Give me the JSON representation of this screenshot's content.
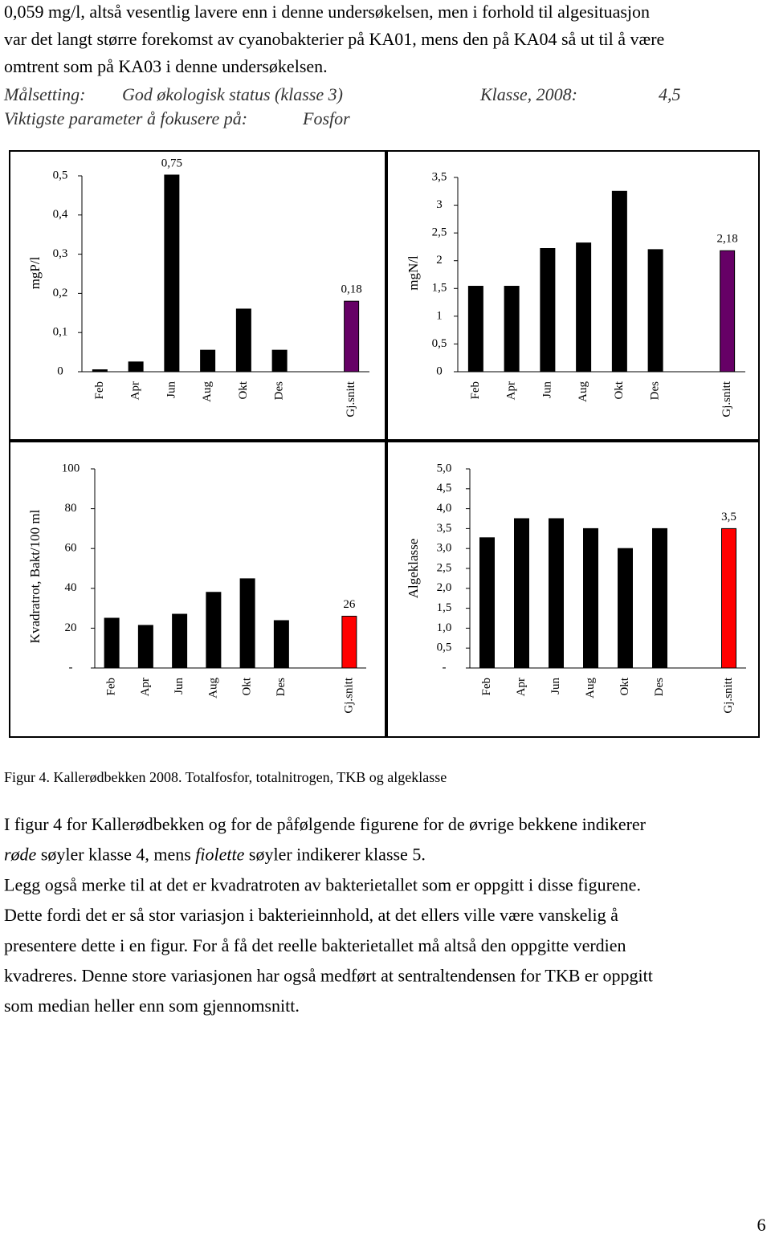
{
  "intro_lines": [
    "0,059 mg/l, altså vesentlig lavere enn i denne undersøkelsen, men i forhold til algesituasjon",
    "var det langt større forekomst av cyanobakterier på KA01, mens den på KA04 så ut til å være",
    "omtrent som på KA03 i denne undersøkelsen."
  ],
  "goal": {
    "label": "Målsetting:",
    "text": "God økologisk status (klasse 3)",
    "class_label": "Klasse, 2008:",
    "class_value": "4,5",
    "focus_label": "Viktigste parameter å fokusere på:",
    "focus_value": "Fosfor"
  },
  "chart_data": [
    {
      "type": "bar",
      "y_label": "mgP/l",
      "categories": [
        "Feb",
        "Apr",
        "Jun",
        "Aug",
        "Okt",
        "Des",
        null,
        "Gj.snitt"
      ],
      "values": [
        0.005,
        0.025,
        0.75,
        0.055,
        0.16,
        0.055,
        null,
        0.18
      ],
      "value_labels": [
        null,
        null,
        "0,75",
        null,
        null,
        null,
        null,
        "0,18"
      ],
      "colors": [
        "#000000",
        "#000000",
        "#000000",
        "#000000",
        "#000000",
        "#000000",
        null,
        "#660066"
      ],
      "ylim": [
        0,
        0.5
      ],
      "yticks": [
        0,
        {
          "value": 0.1,
          "label": "0,1"
        },
        {
          "value": 0.2,
          "label": "0,2"
        },
        {
          "value": 0.3,
          "label": "0,3"
        },
        {
          "value": 0.4,
          "label": "0,4"
        },
        {
          "value": 0.5,
          "label": "0,5"
        }
      ]
    },
    {
      "type": "bar",
      "y_label": "mgN/l",
      "categories": [
        "Feb",
        "Apr",
        "Jun",
        "Aug",
        "Okt",
        "Des",
        null,
        "Gj.snitt"
      ],
      "values": [
        1.54,
        1.54,
        2.22,
        2.32,
        3.25,
        2.2,
        null,
        2.18
      ],
      "value_labels": [
        null,
        null,
        null,
        null,
        null,
        null,
        null,
        "2,18"
      ],
      "colors": [
        "#000000",
        "#000000",
        "#000000",
        "#000000",
        "#000000",
        "#000000",
        null,
        "#660066"
      ],
      "ylim": [
        0,
        3.5
      ],
      "yticks": [
        0,
        {
          "value": 0.5,
          "label": "0,5"
        },
        1,
        {
          "value": 1.5,
          "label": "1,5"
        },
        2,
        {
          "value": 2.5,
          "label": "2,5"
        },
        3,
        {
          "value": 3.5,
          "label": "3,5"
        }
      ]
    },
    {
      "type": "bar",
      "y_label": "Kvadratrot, Bakt/100 ml",
      "categories": [
        "Feb",
        "Apr",
        "Jun",
        "Aug",
        "Okt",
        "Des",
        null,
        "Gj.snitt"
      ],
      "values": [
        25,
        21.4,
        27,
        38,
        44.8,
        23.8,
        null,
        26
      ],
      "value_labels": [
        null,
        null,
        null,
        null,
        null,
        null,
        null,
        "26"
      ],
      "colors": [
        "#000000",
        "#000000",
        "#000000",
        "#000000",
        "#000000",
        "#000000",
        null,
        "#ff0000"
      ],
      "ylim": [
        0,
        100
      ],
      "yticks": [
        {
          "value": 0,
          "label": "-"
        },
        20,
        40,
        60,
        80,
        100
      ]
    },
    {
      "type": "bar",
      "y_label": "Algeklasse",
      "categories": [
        "Feb",
        "Apr",
        "Jun",
        "Aug",
        "Okt",
        "Des",
        null,
        "Gj.snitt"
      ],
      "values": [
        3.27,
        3.75,
        3.75,
        3.5,
        3.0,
        3.5,
        null,
        3.5
      ],
      "value_labels": [
        null,
        null,
        null,
        null,
        null,
        null,
        null,
        "3,5"
      ],
      "colors": [
        "#000000",
        "#000000",
        "#000000",
        "#000000",
        "#000000",
        "#000000",
        null,
        "#ff0000"
      ],
      "ylim": [
        0,
        5
      ],
      "yticks": [
        {
          "value": 0,
          "label": "-"
        },
        {
          "value": 0.5,
          "label": "0,5"
        },
        {
          "value": 1,
          "label": "1,0"
        },
        {
          "value": 1.5,
          "label": "1,5"
        },
        {
          "value": 2,
          "label": "2,0"
        },
        {
          "value": 2.5,
          "label": "2,5"
        },
        {
          "value": 3,
          "label": "3,0"
        },
        {
          "value": 3.5,
          "label": "3,5"
        },
        {
          "value": 4,
          "label": "4,0"
        },
        {
          "value": 4.5,
          "label": "4,5"
        },
        {
          "value": 5,
          "label": "5,0"
        }
      ]
    }
  ],
  "caption": "Figur 4. Kallerødbekken 2008. Totalfosfor, totalnitrogen, TKB og algeklasse",
  "body_lines": [
    "I figur 4 for Kallerødbekken og for de påfølgende figurene for de øvrige bekkene indikerer",
    [
      "røde",
      " søyler klasse 4, mens ",
      "fiolette",
      " søyler indikerer klasse 5."
    ],
    "Legg også merke til at det er kvadratroten av bakterietallet som er oppgitt i disse figurene.",
    "Dette fordi det er så stor variasjon i bakterieinnhold, at det ellers ville være vanskelig å",
    "presentere dette i en figur. For å få det reelle bakterietallet må altså den oppgitte verdien",
    "kvadreres. Denne store variasjonen har også medført at sentraltendensen for TKB er oppgitt",
    "som median heller enn som gjennomsnitt."
  ],
  "page_number": "6"
}
